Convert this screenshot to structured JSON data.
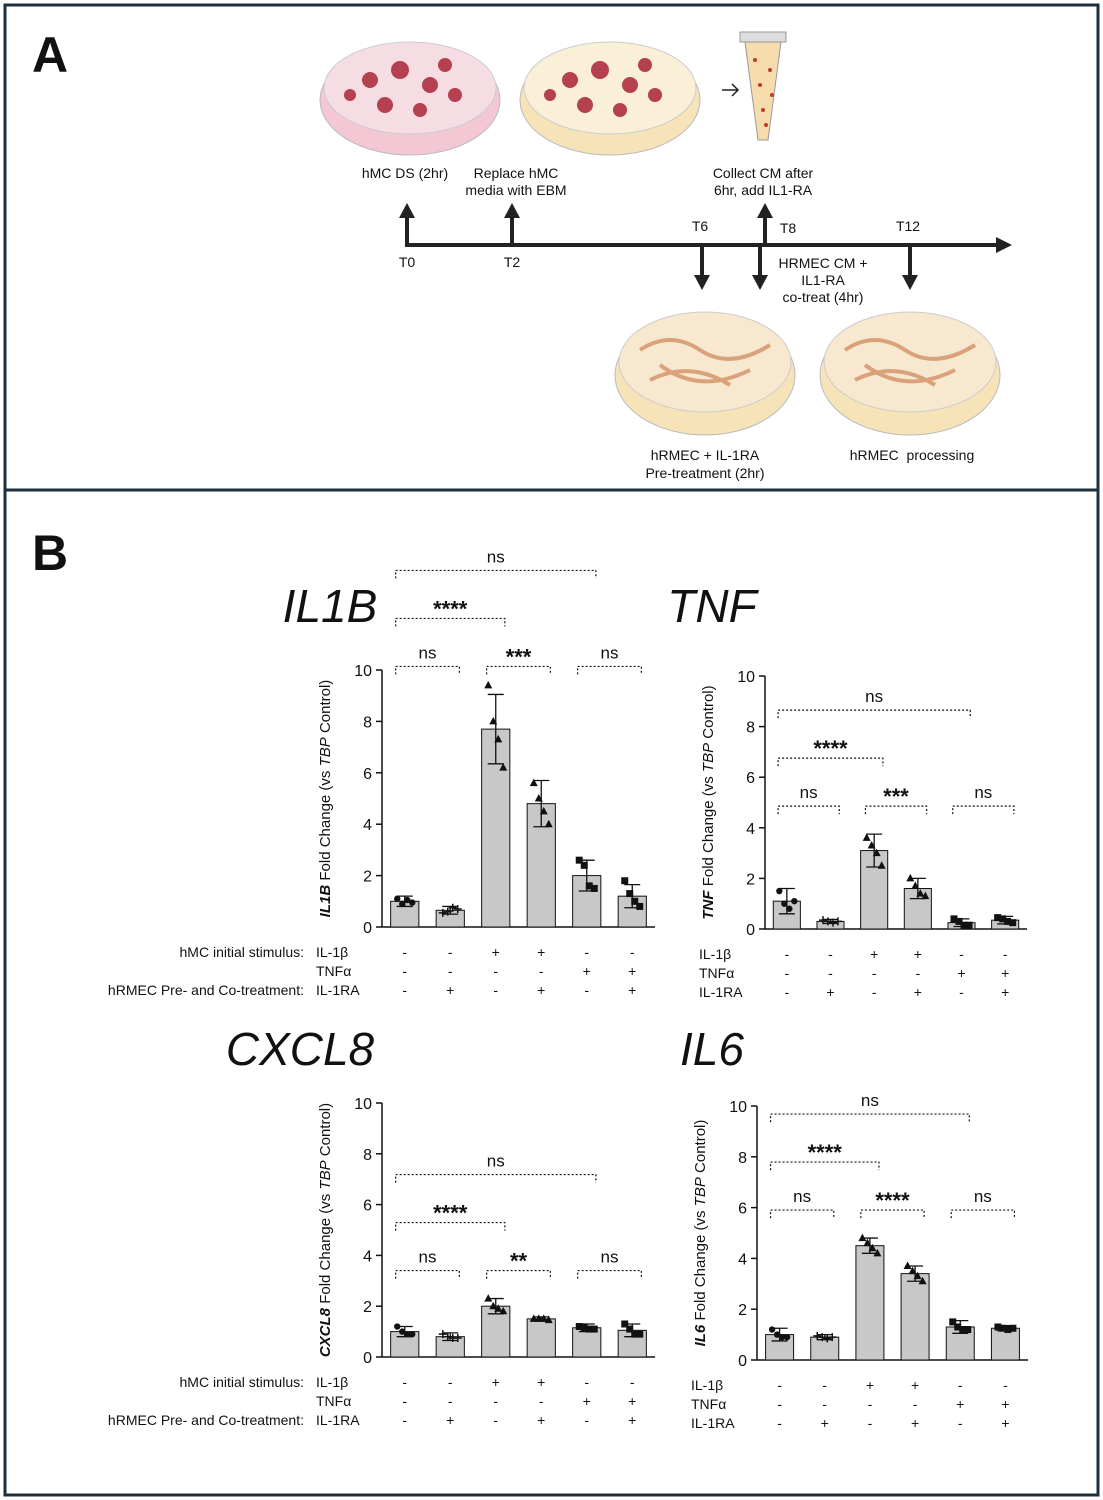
{
  "panel_a": {
    "label": "A",
    "texts": [
      [
        "hMC DS (2hr)"
      ],
      [
        "Replace hMC",
        "media with EBM"
      ],
      [
        "Collect CM after",
        "6hr, add IL1-RA"
      ],
      [
        "T0"
      ],
      [
        "T2"
      ],
      [
        "T6"
      ],
      [
        "T8"
      ],
      [
        "T12"
      ],
      [
        "HRMEC CM +",
        "IL1-RA",
        "co-treat (4hr)"
      ],
      [
        "hRMEC + IL-1RA",
        "Pre-treatment (2hr)"
      ],
      [
        "hRMEC  processing"
      ]
    ]
  },
  "panel_b": {
    "label": "B"
  },
  "chart_data": [
    {
      "type": "bar",
      "title": "IL1B",
      "y_label": [
        "IL1B",
        " Fold Change (vs ",
        "TBP",
        " Control)"
      ],
      "ylim": [
        0,
        10
      ],
      "yticks": [
        0,
        2,
        4,
        6,
        8,
        10
      ],
      "color": "#c8c8c8",
      "values": [
        1.0,
        0.65,
        7.7,
        4.8,
        2.0,
        1.2
      ],
      "errors": [
        0.2,
        0.15,
        1.35,
        0.9,
        0.6,
        0.45
      ],
      "points": [
        [
          1.1,
          0.9,
          1.05,
          0.95
        ],
        [
          0.55,
          0.6,
          0.75,
          0.7
        ],
        [
          9.4,
          8.0,
          7.3,
          6.2
        ],
        [
          5.6,
          5.0,
          4.5,
          4.0
        ],
        [
          2.6,
          2.4,
          1.6,
          1.5
        ],
        [
          1.8,
          1.3,
          1.0,
          0.8
        ]
      ],
      "markers": [
        "circle",
        "plus",
        "triangle",
        "triangle",
        "square",
        "square"
      ],
      "brackets": [
        {
          "from": 0,
          "to": 1,
          "label": "ns"
        },
        {
          "from": 2,
          "to": 3,
          "label": "***"
        },
        {
          "from": 4,
          "to": 5,
          "label": "ns"
        },
        {
          "from": 0,
          "to": 2,
          "label": "****"
        },
        {
          "from": 0,
          "to": 4,
          "label": "ns"
        }
      ],
      "conditions": [
        {
          "header": "hMC initial stimulus:",
          "name": "IL-1β",
          "signs": [
            "-",
            "-",
            "+",
            "+",
            "-",
            "-"
          ]
        },
        {
          "name": "TNFα",
          "signs": [
            "-",
            "-",
            "-",
            "-",
            "+",
            "+"
          ]
        },
        {
          "header": "hRMEC Pre- and Co-treatment:",
          "name": "IL-1RA",
          "signs": [
            "-",
            "+",
            "-",
            "+",
            "-",
            "+"
          ]
        }
      ]
    },
    {
      "type": "bar",
      "title": "TNF",
      "y_label": [
        "TNF",
        " Fold Change (vs ",
        "TBP",
        " Control)"
      ],
      "ylim": [
        0,
        10
      ],
      "yticks": [
        0,
        2,
        4,
        6,
        8,
        10
      ],
      "color": "#c8c8c8",
      "values": [
        1.1,
        0.3,
        3.1,
        1.6,
        0.25,
        0.35
      ],
      "errors": [
        0.5,
        0.08,
        0.65,
        0.4,
        0.15,
        0.15
      ],
      "points": [
        [
          1.5,
          1.0,
          0.8,
          1.1
        ],
        [
          0.35,
          0.3,
          0.25,
          0.3
        ],
        [
          3.6,
          3.3,
          3.0,
          2.5
        ],
        [
          2.0,
          1.7,
          1.4,
          1.3
        ],
        [
          0.4,
          0.3,
          0.15,
          0.15
        ],
        [
          0.45,
          0.4,
          0.3,
          0.25
        ]
      ],
      "markers": [
        "circle",
        "plus",
        "triangle",
        "triangle",
        "square",
        "square"
      ],
      "brackets": [
        {
          "from": 0,
          "to": 1,
          "label": "ns"
        },
        {
          "from": 2,
          "to": 3,
          "label": "***"
        },
        {
          "from": 4,
          "to": 5,
          "label": "ns"
        },
        {
          "from": 0,
          "to": 2,
          "label": "****"
        },
        {
          "from": 0,
          "to": 4,
          "label": "ns"
        }
      ],
      "conditions": [
        {
          "name": "IL-1β",
          "signs": [
            "-",
            "-",
            "+",
            "+",
            "-",
            "-"
          ]
        },
        {
          "name": "TNFα",
          "signs": [
            "-",
            "-",
            "-",
            "-",
            "+",
            "+"
          ]
        },
        {
          "name": "IL-1RA",
          "signs": [
            "-",
            "+",
            "-",
            "+",
            "-",
            "+"
          ]
        }
      ]
    },
    {
      "type": "bar",
      "title": "CXCL8",
      "y_label": [
        "CXCL8",
        " Fold Change (vs ",
        "TBP",
        " Control)"
      ],
      "ylim": [
        0,
        10
      ],
      "yticks": [
        0,
        2,
        4,
        6,
        8,
        10
      ],
      "color": "#c8c8c8",
      "values": [
        1.0,
        0.8,
        2.0,
        1.5,
        1.15,
        1.05
      ],
      "errors": [
        0.2,
        0.15,
        0.3,
        0.08,
        0.15,
        0.25
      ],
      "points": [
        [
          1.2,
          1.0,
          0.9,
          0.9
        ],
        [
          0.9,
          0.8,
          0.75,
          0.75
        ],
        [
          2.3,
          2.0,
          1.9,
          1.8
        ],
        [
          1.5,
          1.5,
          1.5,
          1.45
        ],
        [
          1.2,
          1.15,
          1.1,
          1.1
        ],
        [
          1.3,
          1.1,
          0.9,
          0.9
        ]
      ],
      "markers": [
        "circle",
        "plus",
        "triangle",
        "triangle",
        "square",
        "square"
      ],
      "brackets": [
        {
          "from": 0,
          "to": 1,
          "label": "ns"
        },
        {
          "from": 2,
          "to": 3,
          "label": "**"
        },
        {
          "from": 4,
          "to": 5,
          "label": "ns"
        },
        {
          "from": 0,
          "to": 2,
          "label": "****"
        },
        {
          "from": 0,
          "to": 4,
          "label": "ns"
        }
      ],
      "conditions": [
        {
          "header": "hMC initial stimulus:",
          "name": "IL-1β",
          "signs": [
            "-",
            "-",
            "+",
            "+",
            "-",
            "-"
          ]
        },
        {
          "name": "TNFα",
          "signs": [
            "-",
            "-",
            "-",
            "-",
            "+",
            "+"
          ]
        },
        {
          "header": "hRMEC Pre- and Co-treatment:",
          "name": "IL-1RA",
          "signs": [
            "-",
            "+",
            "-",
            "+",
            "-",
            "+"
          ]
        }
      ]
    },
    {
      "type": "bar",
      "title": "IL6",
      "y_label": [
        "IL6",
        " Fold Change (vs ",
        "TBP",
        " Control)"
      ],
      "ylim": [
        0,
        10
      ],
      "yticks": [
        0,
        2,
        4,
        6,
        8,
        10
      ],
      "color": "#c8c8c8",
      "values": [
        1.0,
        0.9,
        4.5,
        3.4,
        1.3,
        1.25
      ],
      "errors": [
        0.25,
        0.1,
        0.3,
        0.3,
        0.25,
        0.1
      ],
      "points": [
        [
          1.2,
          1.0,
          0.9,
          0.9
        ],
        [
          0.95,
          0.9,
          0.85,
          0.9
        ],
        [
          4.8,
          4.6,
          4.4,
          4.2
        ],
        [
          3.7,
          3.5,
          3.3,
          3.1
        ],
        [
          1.5,
          1.3,
          1.2,
          1.2
        ],
        [
          1.3,
          1.25,
          1.2,
          1.25
        ]
      ],
      "markers": [
        "circle",
        "plus",
        "triangle",
        "triangle",
        "square",
        "square"
      ],
      "brackets": [
        {
          "from": 0,
          "to": 1,
          "label": "ns"
        },
        {
          "from": 2,
          "to": 3,
          "label": "****"
        },
        {
          "from": 4,
          "to": 5,
          "label": "ns"
        },
        {
          "from": 0,
          "to": 2,
          "label": "****"
        },
        {
          "from": 0,
          "to": 4,
          "label": "ns"
        }
      ],
      "conditions": [
        {
          "name": "IL-1β",
          "signs": [
            "-",
            "-",
            "+",
            "+",
            "-",
            "-"
          ]
        },
        {
          "name": "TNFα",
          "signs": [
            "-",
            "-",
            "-",
            "-",
            "+",
            "+"
          ]
        },
        {
          "name": "IL-1RA",
          "signs": [
            "-",
            "+",
            "-",
            "+",
            "-",
            "+"
          ]
        }
      ]
    }
  ]
}
